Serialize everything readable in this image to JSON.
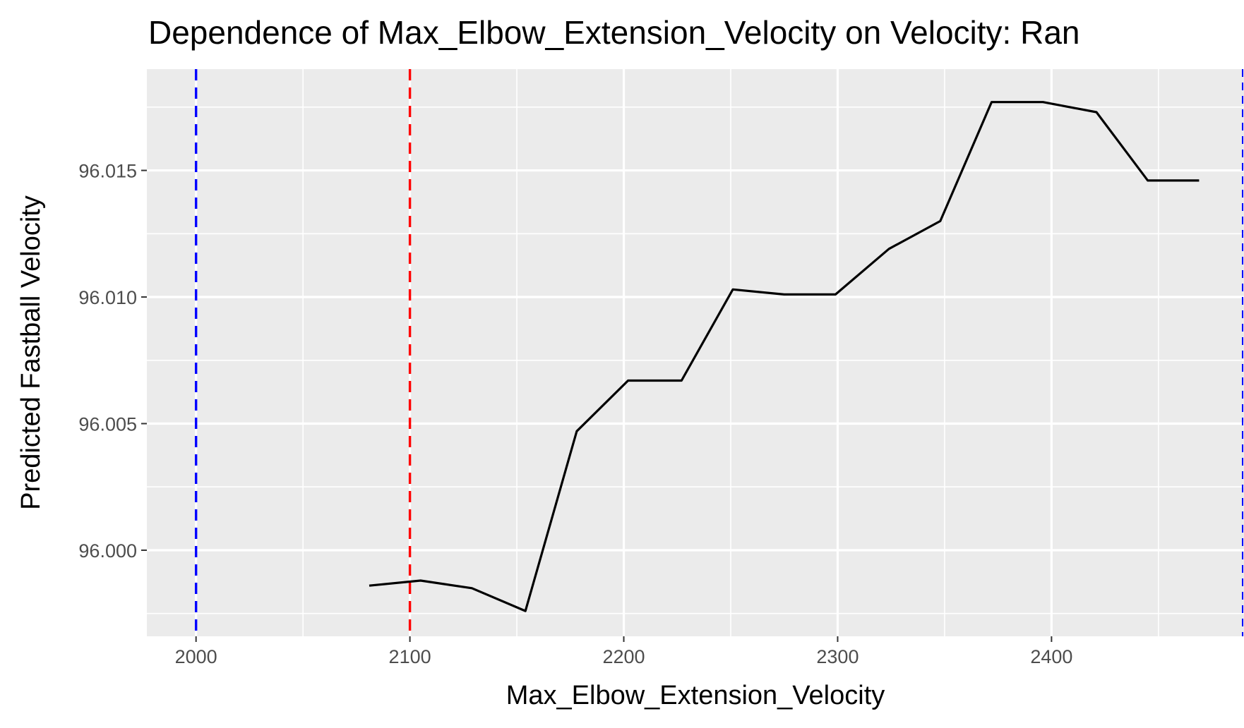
{
  "chart_data": {
    "type": "line",
    "title": "Dependence of Max_Elbow_Extension_Velocity on Velocity: Ran",
    "xlabel": "Max_Elbow_Extension_Velocity",
    "ylabel": "Predicted Fastball Velocity",
    "xlim": [
      1977,
      2490
    ],
    "ylim": [
      95.9966,
      96.019
    ],
    "x_ticks": [
      2000,
      2100,
      2200,
      2300,
      2400
    ],
    "x_tick_labels": [
      "2000",
      "2100",
      "2200",
      "2300",
      "2400"
    ],
    "y_ticks": [
      96.0,
      96.005,
      96.01,
      96.015
    ],
    "y_tick_labels": [
      "96.000",
      "96.005",
      "96.010",
      "96.015"
    ],
    "grid": true,
    "panel_background": "#ebebeb",
    "series": [
      {
        "color": "#000000",
        "x": [
          2081,
          2105,
          2129,
          2154,
          2178,
          2202,
          2227,
          2251,
          2275,
          2299,
          2324,
          2348,
          2372,
          2396,
          2421,
          2445,
          2469
        ],
        "y": [
          95.9986,
          95.9988,
          95.9985,
          95.9976,
          96.0047,
          96.0067,
          96.0067,
          96.0103,
          96.0101,
          96.0101,
          96.0119,
          96.013,
          96.0177,
          96.0177,
          96.0173,
          96.0146,
          96.0146
        ]
      }
    ],
    "reference_lines": [
      {
        "x": 2000,
        "color": "#0000ff",
        "style": "dashed"
      },
      {
        "x": 2100,
        "color": "#ff0000",
        "style": "dashed"
      },
      {
        "x": 2490,
        "color": "#0000ff",
        "style": "dashed"
      }
    ]
  }
}
